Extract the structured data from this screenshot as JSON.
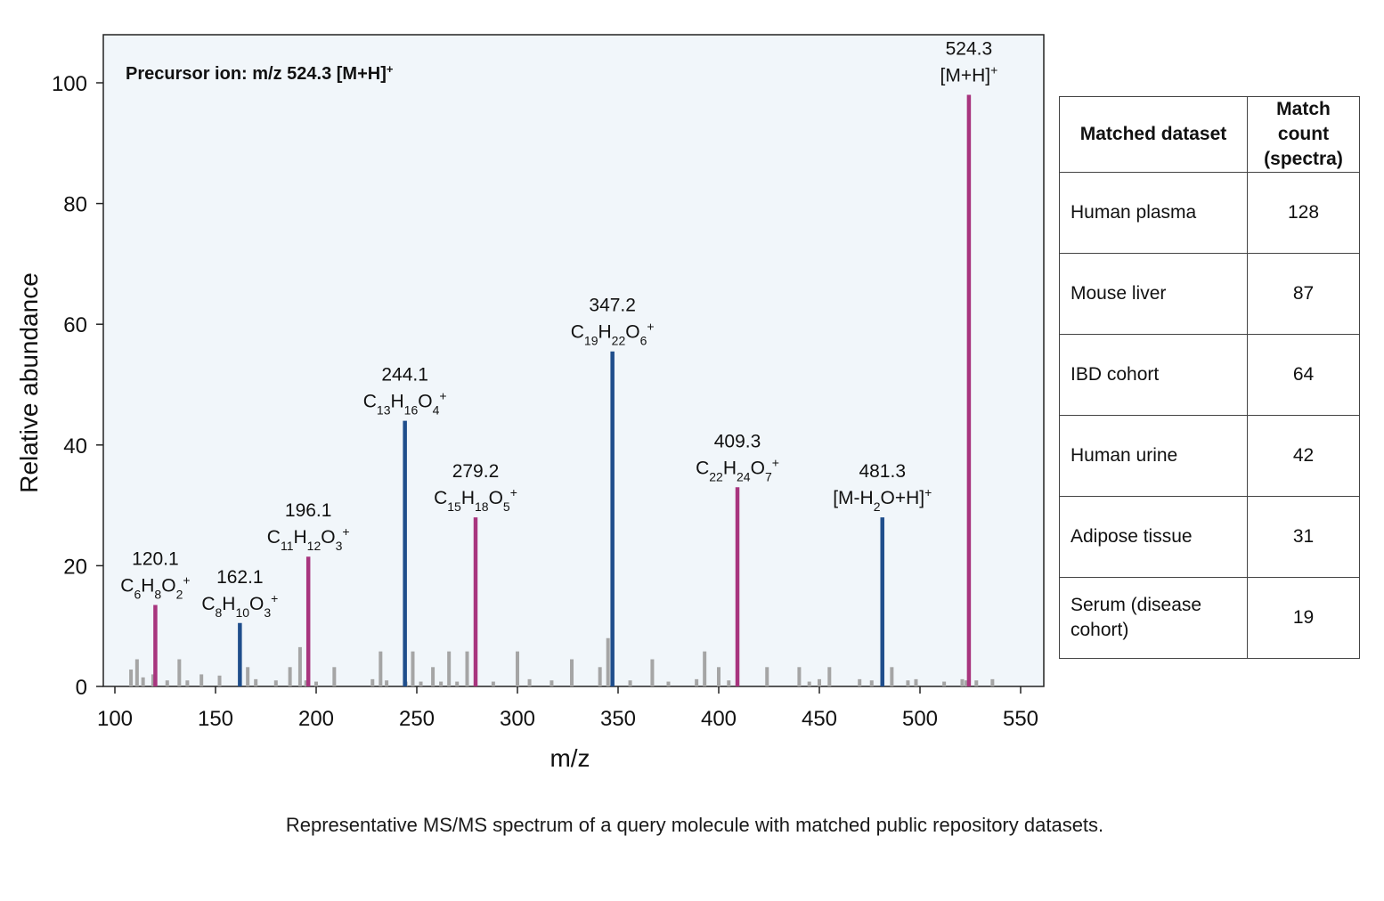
{
  "chart_data": {
    "type": "bar",
    "title": "Precursor ion: m/z 524.3 [M+H]",
    "title_sup": "+",
    "xlabel": "m/z",
    "ylabel": "Relative abundance",
    "xlim": [
      95,
      565
    ],
    "ylim": [
      0,
      108
    ],
    "xticks": [
      100,
      150,
      200,
      250,
      300,
      350,
      400,
      450,
      500,
      550
    ],
    "yticks": [
      0,
      20,
      40,
      60,
      80,
      100
    ],
    "grid": false,
    "colors": {
      "highlight_magenta": "#a8357e",
      "highlight_blue": "#1f4e8c",
      "minor": "#a5a5a5",
      "plot_bg": "#f1f6fa"
    },
    "labeled_peaks": [
      {
        "mz": 120.1,
        "intensity": 13.5,
        "color": "magenta",
        "label": "120.1",
        "formula": [
          [
            "C",
            ""
          ],
          [
            "6",
            "sub"
          ],
          [
            "H",
            ""
          ],
          [
            "8",
            "sub"
          ],
          [
            "O",
            ""
          ],
          [
            "2",
            "sub"
          ],
          [
            "+",
            "sup"
          ]
        ]
      },
      {
        "mz": 162.1,
        "intensity": 10.5,
        "color": "blue",
        "label": "162.1",
        "formula": [
          [
            "C",
            ""
          ],
          [
            "8",
            "sub"
          ],
          [
            "H",
            ""
          ],
          [
            "10",
            "sub"
          ],
          [
            "O",
            ""
          ],
          [
            "3",
            "sub"
          ],
          [
            "+",
            "sup"
          ]
        ]
      },
      {
        "mz": 196.1,
        "intensity": 21.5,
        "color": "magenta",
        "label": "196.1",
        "formula": [
          [
            "C",
            ""
          ],
          [
            "11",
            "sub"
          ],
          [
            "H",
            ""
          ],
          [
            "12",
            "sub"
          ],
          [
            "O",
            ""
          ],
          [
            "3",
            "sub"
          ],
          [
            "+",
            "sup"
          ]
        ]
      },
      {
        "mz": 244.1,
        "intensity": 44,
        "color": "blue",
        "label": "244.1",
        "formula": [
          [
            "C",
            ""
          ],
          [
            "13",
            "sub"
          ],
          [
            "H",
            ""
          ],
          [
            "16",
            "sub"
          ],
          [
            "O",
            ""
          ],
          [
            "4",
            "sub"
          ],
          [
            "+",
            "sup"
          ]
        ]
      },
      {
        "mz": 279.2,
        "intensity": 28,
        "color": "magenta",
        "label": "279.2",
        "formula": [
          [
            "C",
            ""
          ],
          [
            "15",
            "sub"
          ],
          [
            "H",
            ""
          ],
          [
            "18",
            "sub"
          ],
          [
            "O",
            ""
          ],
          [
            "5",
            "sub"
          ],
          [
            "+",
            "sup"
          ]
        ]
      },
      {
        "mz": 347.2,
        "intensity": 55.5,
        "color": "blue",
        "label": "347.2",
        "formula": [
          [
            "C",
            ""
          ],
          [
            "19",
            "sub"
          ],
          [
            "H",
            ""
          ],
          [
            "22",
            "sub"
          ],
          [
            "O",
            ""
          ],
          [
            "6",
            "sub"
          ],
          [
            "+",
            "sup"
          ]
        ]
      },
      {
        "mz": 409.3,
        "intensity": 33,
        "color": "magenta",
        "label": "409.3",
        "formula": [
          [
            "C",
            ""
          ],
          [
            "22",
            "sub"
          ],
          [
            "H",
            ""
          ],
          [
            "24",
            "sub"
          ],
          [
            "O",
            ""
          ],
          [
            "7",
            "sub"
          ],
          [
            "+",
            "sup"
          ]
        ]
      },
      {
        "mz": 481.3,
        "intensity": 28,
        "color": "blue",
        "label": "481.3",
        "formula": [
          [
            "[M-H",
            ""
          ],
          [
            "2",
            "sub"
          ],
          [
            "O+H]",
            ""
          ],
          [
            "+",
            "sup"
          ]
        ]
      },
      {
        "mz": 524.3,
        "intensity": 98,
        "color": "magenta",
        "label": "524.3",
        "formula": [
          [
            "[M+H]",
            ""
          ],
          [
            "+",
            "sup"
          ]
        ]
      }
    ],
    "minor_peaks": [
      {
        "mz": 108,
        "intensity": 2.8
      },
      {
        "mz": 111,
        "intensity": 4.5
      },
      {
        "mz": 114,
        "intensity": 1.5
      },
      {
        "mz": 119,
        "intensity": 2
      },
      {
        "mz": 126,
        "intensity": 1
      },
      {
        "mz": 132,
        "intensity": 4.5
      },
      {
        "mz": 136,
        "intensity": 1
      },
      {
        "mz": 143,
        "intensity": 2
      },
      {
        "mz": 152,
        "intensity": 1.8
      },
      {
        "mz": 166,
        "intensity": 3.2
      },
      {
        "mz": 170,
        "intensity": 1.2
      },
      {
        "mz": 180,
        "intensity": 1
      },
      {
        "mz": 187,
        "intensity": 3.2
      },
      {
        "mz": 192,
        "intensity": 6.5
      },
      {
        "mz": 195,
        "intensity": 1
      },
      {
        "mz": 200,
        "intensity": 0.8
      },
      {
        "mz": 209,
        "intensity": 3.2
      },
      {
        "mz": 228,
        "intensity": 1.2
      },
      {
        "mz": 232,
        "intensity": 5.8
      },
      {
        "mz": 235,
        "intensity": 1
      },
      {
        "mz": 244.5,
        "intensity": 0.8
      },
      {
        "mz": 248,
        "intensity": 5.8
      },
      {
        "mz": 252,
        "intensity": 0.8
      },
      {
        "mz": 258,
        "intensity": 3.2
      },
      {
        "mz": 262,
        "intensity": 0.8
      },
      {
        "mz": 266,
        "intensity": 5.8
      },
      {
        "mz": 270,
        "intensity": 0.8
      },
      {
        "mz": 275,
        "intensity": 5.8
      },
      {
        "mz": 288,
        "intensity": 0.8
      },
      {
        "mz": 300,
        "intensity": 5.8
      },
      {
        "mz": 306,
        "intensity": 1.2
      },
      {
        "mz": 317,
        "intensity": 1
      },
      {
        "mz": 327,
        "intensity": 4.5
      },
      {
        "mz": 341,
        "intensity": 3.2
      },
      {
        "mz": 345,
        "intensity": 8
      },
      {
        "mz": 356,
        "intensity": 1
      },
      {
        "mz": 367,
        "intensity": 4.5
      },
      {
        "mz": 375,
        "intensity": 0.8
      },
      {
        "mz": 389,
        "intensity": 1.2
      },
      {
        "mz": 393,
        "intensity": 5.8
      },
      {
        "mz": 400,
        "intensity": 3.2
      },
      {
        "mz": 405,
        "intensity": 1
      },
      {
        "mz": 424,
        "intensity": 3.2
      },
      {
        "mz": 440,
        "intensity": 3.2
      },
      {
        "mz": 445,
        "intensity": 0.8
      },
      {
        "mz": 450,
        "intensity": 1.2
      },
      {
        "mz": 455,
        "intensity": 3.2
      },
      {
        "mz": 470,
        "intensity": 1.2
      },
      {
        "mz": 476,
        "intensity": 1
      },
      {
        "mz": 486,
        "intensity": 3.2
      },
      {
        "mz": 494,
        "intensity": 1
      },
      {
        "mz": 498,
        "intensity": 1.2
      },
      {
        "mz": 512,
        "intensity": 0.8
      },
      {
        "mz": 521,
        "intensity": 1.2
      },
      {
        "mz": 523,
        "intensity": 1
      },
      {
        "mz": 528,
        "intensity": 1
      },
      {
        "mz": 536,
        "intensity": 1.2
      }
    ]
  },
  "table": {
    "headers": [
      "Matched dataset",
      "Match count (spectra)"
    ],
    "rows": [
      {
        "dataset": "Human plasma",
        "count": "128"
      },
      {
        "dataset": "Mouse liver",
        "count": "87"
      },
      {
        "dataset": "IBD cohort",
        "count": "64"
      },
      {
        "dataset": "Human urine",
        "count": "42"
      },
      {
        "dataset": "Adipose tissue",
        "count": "31"
      },
      {
        "dataset": "Serum (disease cohort)",
        "count": "19"
      }
    ]
  },
  "caption": "Representative MS/MS spectrum of a query molecule with matched public repository datasets."
}
